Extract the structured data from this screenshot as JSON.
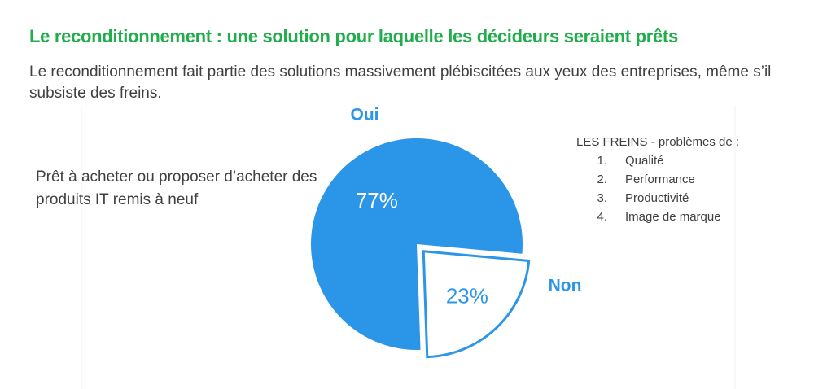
{
  "chart_data": {
    "type": "pie",
    "title": "Le reconditionnement : une solution pour laquelle les décideurs seraient prêts",
    "subtitle": "Le reconditionnement fait partie des solutions massivement plébiscitées aux yeux des entreprises, même s’il subsiste des freins.",
    "annotation": "Prêt à acheter ou proposer d’acheter des produits IT remis à neuf",
    "categories": [
      "Oui",
      "Non"
    ],
    "values": [
      77,
      23
    ],
    "value_labels": [
      "77%",
      "23%"
    ],
    "colors": [
      "#2b96e8",
      "#ffffff"
    ],
    "edge_color": "#2b96e8"
  },
  "freins": {
    "title": "LES FREINS - problèmes de :",
    "items": [
      {
        "number": "1.",
        "text": "Qualité"
      },
      {
        "number": "2.",
        "text": "Performance"
      },
      {
        "number": "3.",
        "text": "Productivité"
      },
      {
        "number": "4.",
        "text": "Image de marque"
      }
    ]
  }
}
